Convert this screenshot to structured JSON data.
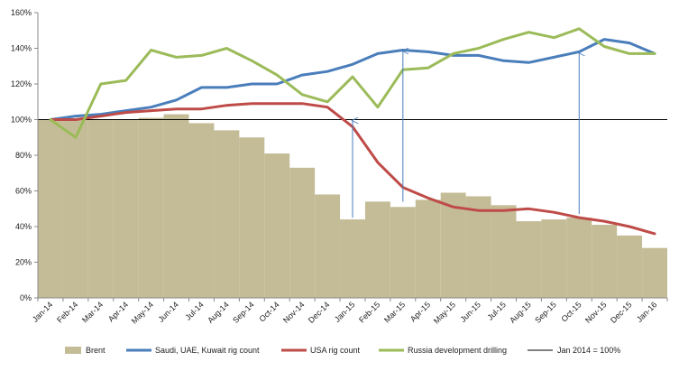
{
  "chart_data": {
    "type": "bar",
    "categories": [
      "Jan-14",
      "Feb-14",
      "Mar-14",
      "Apr-14",
      "May-14",
      "Jun-14",
      "Jul-14",
      "Aug-14",
      "Sep-14",
      "Oct-14",
      "Nov-14",
      "Dec-14",
      "Jan-15",
      "Feb-15",
      "Mar-15",
      "Apr-15",
      "May-15",
      "Jun-15",
      "Jul-15",
      "Aug-15",
      "Sep-15",
      "Oct-15",
      "Nov-15",
      "Dec-15",
      "Jan-16"
    ],
    "ylim": [
      0,
      160
    ],
    "yticks": [
      "0%",
      "20%",
      "40%",
      "60%",
      "80%",
      "100%",
      "120%",
      "140%",
      "160%"
    ],
    "ytick_values": [
      0,
      20,
      40,
      60,
      80,
      100,
      120,
      140,
      160
    ],
    "grid": false,
    "legend_position": "bottom",
    "series": [
      {
        "name": "Brent",
        "type": "bar",
        "color": "#C4BC96",
        "values": [
          100,
          100,
          100,
          100,
          101,
          103,
          98,
          94,
          90,
          81,
          73,
          58,
          44,
          54,
          51,
          55,
          59,
          57,
          52,
          43,
          44,
          45,
          41,
          35,
          28
        ]
      },
      {
        "name": "Saudi, UAE, Kuwait rig count",
        "type": "line",
        "color": "#4A7EBB",
        "values": [
          100,
          102,
          103,
          105,
          107,
          111,
          118,
          118,
          120,
          120,
          125,
          127,
          131,
          137,
          139,
          138,
          136,
          136,
          133,
          132,
          135,
          138,
          145,
          143,
          137
        ]
      },
      {
        "name": "USA rig count",
        "type": "line",
        "color": "#BE4B48",
        "values": [
          100,
          100,
          102,
          104,
          105,
          106,
          106,
          108,
          109,
          109,
          109,
          107,
          96,
          76,
          62,
          56,
          51,
          49,
          49,
          50,
          48,
          45,
          43,
          40,
          36
        ]
      },
      {
        "name": "Russia development drilling",
        "type": "line",
        "color": "#9BBB59",
        "values": [
          100,
          90,
          120,
          122,
          139,
          135,
          136,
          140,
          133,
          125,
          114,
          110,
          124,
          107,
          128,
          129,
          137,
          140,
          145,
          149,
          146,
          151,
          141,
          137,
          137
        ]
      },
      {
        "name": "Jan 2014 = 100%",
        "type": "reference",
        "color": "#000000",
        "value": 100
      }
    ],
    "arrows": [
      {
        "x": "Jan-15",
        "from": 45,
        "to": 100
      },
      {
        "x": "Mar-15",
        "from": 54,
        "to": 139
      },
      {
        "x": "Oct-15",
        "from": 47,
        "to": 138
      }
    ]
  }
}
